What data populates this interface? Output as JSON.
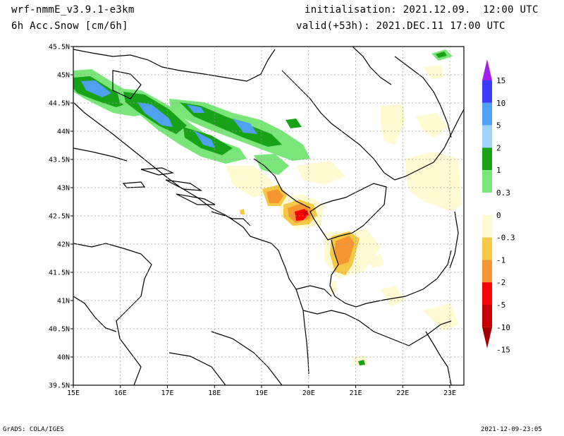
{
  "header": {
    "model": "wrf-nmmE_v3.9.1-e3km",
    "variable": "6h Acc.Snow [cm/6h]",
    "initialisation": "initialisation: 2021.12.09.  12:00 UTC",
    "valid": "valid(+53h): 2021.DEC.11 17:00 UTC"
  },
  "map": {
    "lat_labels": [
      "45.5N",
      "45N",
      "44.5N",
      "44N",
      "43.5N",
      "43N",
      "42.5N",
      "42N",
      "41.5N",
      "41N",
      "40.5N",
      "40N",
      "39.5N"
    ],
    "lon_labels": [
      "15E",
      "16E",
      "17E",
      "18E",
      "19E",
      "20E",
      "21E",
      "22E",
      "23E"
    ],
    "lat_range": [
      39.5,
      45.5
    ],
    "lon_range": [
      15,
      23.3
    ]
  },
  "colorbar": {
    "labels": [
      "15",
      "10",
      "5",
      "2",
      "1",
      "0.3",
      "0",
      "-0.3",
      "-1",
      "-2",
      "-5",
      "-10",
      "-15"
    ],
    "colors": [
      "#a020f0",
      "#3c3cff",
      "#4fa0f0",
      "#a0d2fa",
      "#17a217",
      "#7ae67a",
      "#ffffff",
      "#fffad2",
      "#f5c846",
      "#f59632",
      "#ff0000",
      "#c80000",
      "#a00000"
    ]
  },
  "footer": {
    "left": "GrADS: COLA/IGES",
    "right": "2021-12-09-23:05"
  }
}
